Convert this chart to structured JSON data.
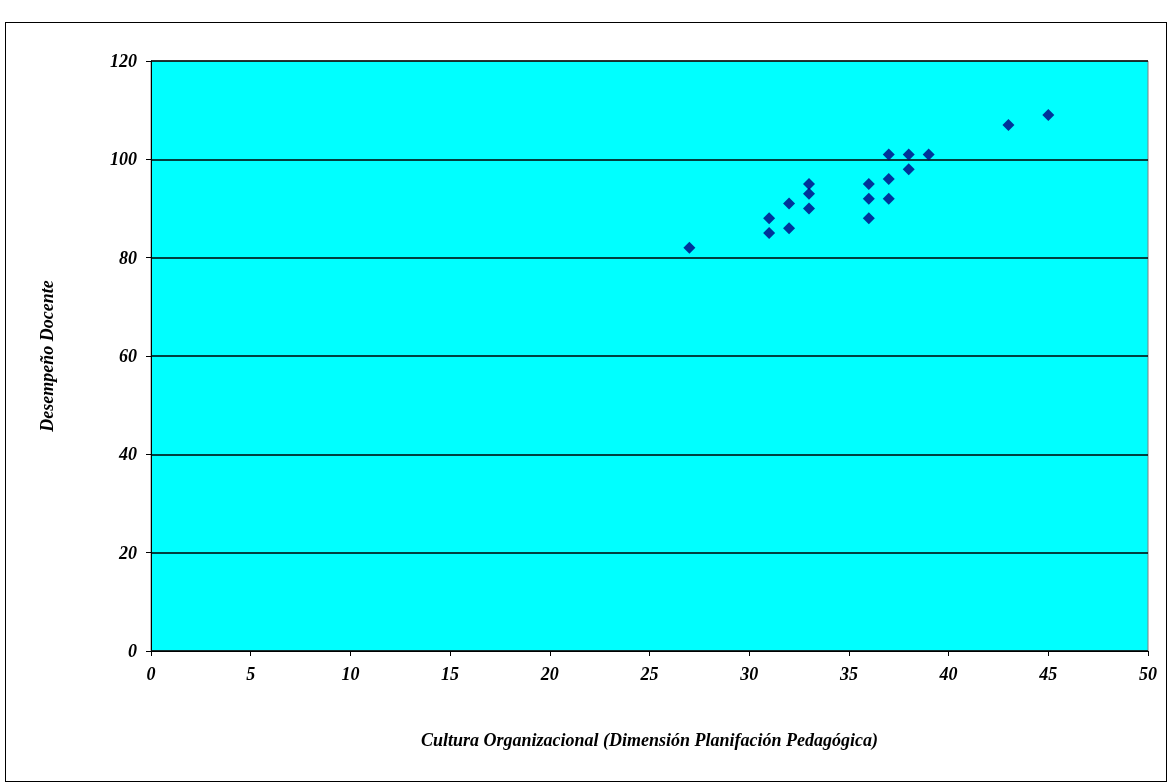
{
  "chart_data": {
    "type": "scatter",
    "xlabel": "Cultura Organizacional (Dimensión Planifación Pedagógica)",
    "ylabel": "Desempeño Docente",
    "x": [
      27,
      31,
      31,
      32,
      32,
      33,
      33,
      33,
      36,
      36,
      36,
      37,
      37,
      37,
      38,
      38,
      39,
      43,
      45
    ],
    "series": [
      {
        "color": "#000080",
        "values": [
          82,
          88,
          85,
          91,
          86,
          95,
          93,
          90,
          95,
          92,
          88,
          101,
          96,
          92,
          101,
          98,
          101,
          107,
          109
        ]
      }
    ],
    "xlim": [
      0,
      50
    ],
    "xticks": [
      0,
      5,
      10,
      15,
      20,
      25,
      30,
      35,
      40,
      45,
      50
    ],
    "ylim": [
      0,
      120
    ],
    "yticks": [
      0,
      20,
      40,
      60,
      80,
      100,
      120
    ],
    "grid": "y",
    "marker": "diamond"
  }
}
